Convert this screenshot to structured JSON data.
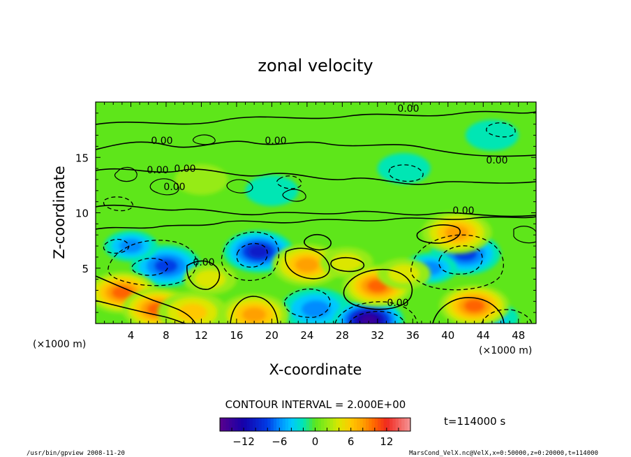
{
  "chart_data": {
    "type": "heatmap",
    "title": "zonal velocity",
    "xlabel": "X-coordinate",
    "ylabel": "Z-coordinate",
    "x_unit": "(×1000 m)",
    "y_unit": "(×1000 m)",
    "xlim": [
      0,
      50
    ],
    "ylim": [
      0,
      20
    ],
    "x_ticks": [
      4,
      8,
      12,
      16,
      20,
      24,
      28,
      32,
      36,
      40,
      44,
      48
    ],
    "y_ticks": [
      5,
      10,
      15
    ],
    "contour_labels": [
      "0.00",
      "0.00",
      "0.00",
      "0.00",
      "0.00",
      "0.00",
      "0.00",
      "0.00",
      "0.00",
      "0.00"
    ],
    "contour_interval_text": "CONTOUR INTERVAL = 2.000E+00",
    "time_text": "t=114000 s",
    "colorbar": {
      "range": [
        -16,
        16
      ],
      "ticks": [
        -12,
        -6,
        0,
        6,
        12
      ]
    },
    "anomalies": [
      {
        "x": 8,
        "z": 5.2,
        "value": -8
      },
      {
        "x": 4,
        "z": 7,
        "value": -5
      },
      {
        "x": 18.5,
        "z": 6.5,
        "value": -9
      },
      {
        "x": 42,
        "z": 6.3,
        "value": -8
      },
      {
        "x": 38,
        "z": 5,
        "value": -5
      },
      {
        "x": 25,
        "z": 1.3,
        "value": -6
      },
      {
        "x": 31,
        "z": 0.3,
        "value": -14
      },
      {
        "x": 45,
        "z": 0.5,
        "value": -4
      },
      {
        "x": 3,
        "z": 2.8,
        "value": 9
      },
      {
        "x": 7,
        "z": 1.3,
        "value": 9
      },
      {
        "x": 11,
        "z": 1,
        "value": 6
      },
      {
        "x": 18,
        "z": 0.8,
        "value": 8
      },
      {
        "x": 24,
        "z": 5.3,
        "value": 7
      },
      {
        "x": 28.5,
        "z": 5.5,
        "value": 4
      },
      {
        "x": 32,
        "z": 3.4,
        "value": 9
      },
      {
        "x": 35,
        "z": 4.5,
        "value": 4
      },
      {
        "x": 41,
        "z": 8.2,
        "value": 8
      },
      {
        "x": 43,
        "z": 1.6,
        "value": 9
      },
      {
        "x": 13,
        "z": 4,
        "value": 4
      },
      {
        "x": 12,
        "z": 13,
        "value": 2
      },
      {
        "x": 20,
        "z": 12,
        "value": -2
      },
      {
        "x": 35,
        "z": 14,
        "value": -2
      },
      {
        "x": 45,
        "z": 17,
        "value": -2
      }
    ]
  },
  "footer": {
    "left": "/usr/bin/gpview  2008-11-20",
    "right": "MarsCond_VelX.nc@VelX,x=0:50000,z=0:20000,t=114000"
  },
  "colors": {
    "background": "#ffffff",
    "field_base": "#5ee61a",
    "text": "#000000"
  }
}
